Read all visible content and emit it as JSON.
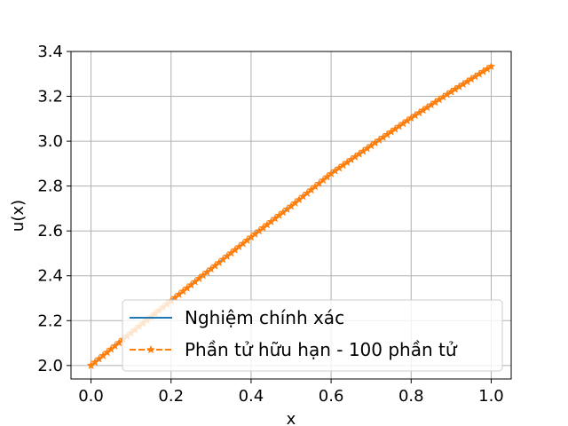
{
  "chart_data": {
    "type": "line",
    "xlabel": "x",
    "ylabel": "u(x)",
    "xlim": [
      -0.05,
      1.05
    ],
    "ylim": [
      1.94,
      3.4
    ],
    "xticks": [
      "0.0",
      "0.2",
      "0.4",
      "0.6",
      "0.8",
      "1.0"
    ],
    "yticks": [
      "2.0",
      "2.2",
      "2.4",
      "2.6",
      "2.8",
      "3.0",
      "3.2",
      "3.4"
    ],
    "grid": true,
    "legend_position": "lower right",
    "series": [
      {
        "name": "Nghiệm chính xác",
        "style": "solid",
        "color": "#1f77b4",
        "x": [
          0.0,
          0.1,
          0.2,
          0.3,
          0.4,
          0.5,
          0.6,
          0.7,
          0.8,
          0.9,
          1.0
        ],
        "y": [
          2.0,
          2.145,
          2.288,
          2.43,
          2.572,
          2.71,
          2.855,
          2.98,
          3.103,
          3.22,
          3.333
        ]
      },
      {
        "name": "Phần tử hữu hạn - 100 phần tử",
        "style": "dashed",
        "marker": "star",
        "color": "#ff7f0e",
        "x": [
          0.0,
          0.1,
          0.2,
          0.3,
          0.4,
          0.5,
          0.6,
          0.7,
          0.8,
          0.9,
          1.0
        ],
        "y": [
          2.0,
          2.145,
          2.288,
          2.43,
          2.572,
          2.71,
          2.855,
          2.98,
          3.103,
          3.22,
          3.333
        ]
      }
    ]
  }
}
